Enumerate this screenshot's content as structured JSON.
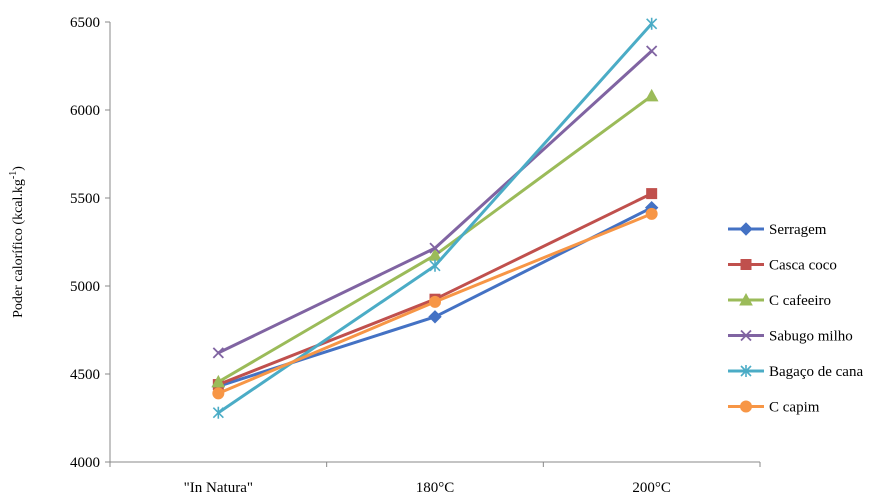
{
  "chart_data": {
    "type": "line",
    "categories": [
      "\"In Natura\"",
      "180°C",
      "200°C"
    ],
    "ylabel_main": "Poder calorífico (kcal.kg",
    "ylabel_sup": "-1",
    "ylabel_tail": ")",
    "ylim": [
      4000,
      6500
    ],
    "yticks": [
      4000,
      4500,
      5000,
      5500,
      6000,
      6500
    ],
    "grid": false,
    "legend_position": "right",
    "series": [
      {
        "name": "Serragem",
        "color": "#4472C4",
        "marker": "diamond",
        "values": [
          4430,
          4825,
          5445
        ]
      },
      {
        "name": "Casca coco",
        "color": "#C0504D",
        "marker": "square",
        "values": [
          4440,
          4925,
          5525
        ]
      },
      {
        "name": "C cafeeiro",
        "color": "#9BBB59",
        "marker": "triangle",
        "values": [
          4455,
          5175,
          6080
        ]
      },
      {
        "name": "Sabugo milho",
        "color": "#8064A2",
        "marker": "x",
        "values": [
          4620,
          5215,
          6335
        ]
      },
      {
        "name": "Bagaço de cana",
        "color": "#4BACC6",
        "marker": "star",
        "values": [
          4280,
          5115,
          6490
        ]
      },
      {
        "name": "C capim",
        "color": "#F79646",
        "marker": "circle",
        "values": [
          4390,
          4910,
          5410
        ]
      }
    ]
  }
}
